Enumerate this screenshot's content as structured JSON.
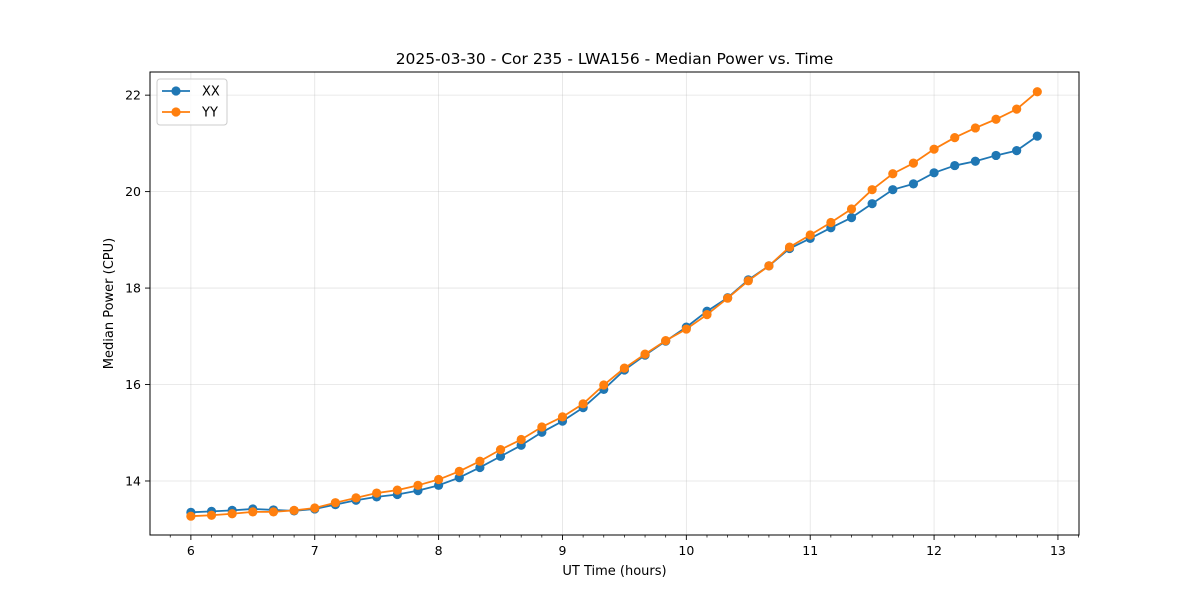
{
  "chart_data": {
    "type": "line",
    "title": "2025-03-30 - Cor 235 - LWA156 - Median Power vs. Time",
    "xlabel": "UT Time (hours)",
    "ylabel": "Median Power (CPU)",
    "xlim": [
      5.67,
      13.17
    ],
    "ylim": [
      12.88,
      22.48
    ],
    "xticks": [
      6,
      7,
      8,
      9,
      10,
      11,
      12,
      13
    ],
    "yticks": [
      14,
      16,
      18,
      20,
      22
    ],
    "grid": true,
    "legend_position": "top-left",
    "x": [
      6.0,
      6.1667,
      6.3333,
      6.5,
      6.6667,
      6.8333,
      7.0,
      7.1667,
      7.3333,
      7.5,
      7.6667,
      7.8333,
      8.0,
      8.1667,
      8.3333,
      8.5,
      8.6667,
      8.8333,
      9.0,
      9.1667,
      9.3333,
      9.5,
      9.6667,
      9.8333,
      10.0,
      10.1667,
      10.3333,
      10.5,
      10.6667,
      10.8333,
      11.0,
      11.1667,
      11.3333,
      11.5,
      11.6667,
      11.8333,
      12.0,
      12.1667,
      12.3333,
      12.5,
      12.6667,
      12.8333
    ],
    "series": [
      {
        "name": "XX",
        "color": "#1f77b4",
        "values": [
          13.35,
          13.37,
          13.39,
          13.42,
          13.4,
          13.38,
          13.42,
          13.51,
          13.6,
          13.67,
          13.72,
          13.8,
          13.91,
          14.07,
          14.28,
          14.51,
          14.74,
          15.01,
          15.24,
          15.52,
          15.9,
          16.3,
          16.61,
          16.9,
          17.19,
          17.52,
          17.8,
          18.17,
          18.46,
          18.82,
          19.03,
          19.25,
          19.46,
          19.75,
          20.04,
          20.16,
          20.39,
          20.54,
          20.63,
          20.75,
          20.85,
          21.15
        ]
      },
      {
        "name": "YY",
        "color": "#ff7f0e",
        "values": [
          13.27,
          13.29,
          13.32,
          13.36,
          13.36,
          13.39,
          13.44,
          13.55,
          13.65,
          13.75,
          13.81,
          13.91,
          14.03,
          14.2,
          14.41,
          14.65,
          14.86,
          15.12,
          15.33,
          15.6,
          15.99,
          16.34,
          16.63,
          16.91,
          17.15,
          17.45,
          17.79,
          18.15,
          18.46,
          18.85,
          19.1,
          19.36,
          19.64,
          20.04,
          20.37,
          20.59,
          20.88,
          21.12,
          21.32,
          21.5,
          21.71,
          22.07
        ]
      }
    ]
  }
}
